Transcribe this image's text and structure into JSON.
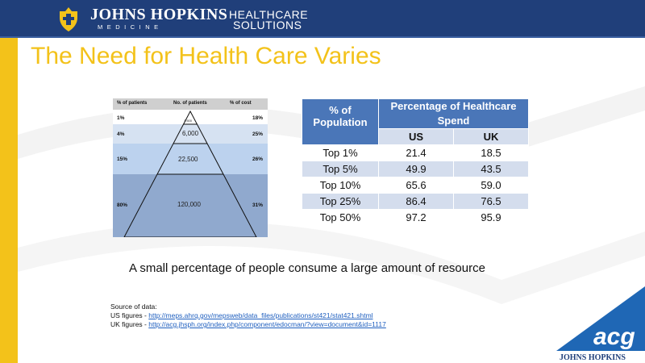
{
  "header": {
    "logo_main": "JOHNS HOPKINS",
    "logo_sub": "MEDICINE",
    "division_line1": "HEALTHCARE",
    "division_line2": "SOLUTIONS"
  },
  "slide": {
    "title": "The Need for Health Care Varies",
    "caption": "A small percentage of people consume a large amount of resource"
  },
  "pyramid": {
    "headers": [
      "% of patients",
      "No. of patients",
      "% of cost"
    ],
    "rows": [
      {
        "patients_pct": "1%",
        "count": "1,500",
        "cost_pct": "18%"
      },
      {
        "patients_pct": "4%",
        "count": "6,000",
        "cost_pct": "25%"
      },
      {
        "patients_pct": "15%",
        "count": "22,500",
        "cost_pct": "26%"
      },
      {
        "patients_pct": "80%",
        "count": "120,000",
        "cost_pct": "31%"
      }
    ]
  },
  "spend_table": {
    "header_population": "% of Population",
    "header_spend": "Percentage of Healthcare Spend",
    "col_us": "US",
    "col_uk": "UK",
    "rows": [
      {
        "label": "Top 1%",
        "us": "21.4",
        "uk": "18.5"
      },
      {
        "label": "Top 5%",
        "us": "49.9",
        "uk": "43.5"
      },
      {
        "label": "Top 10%",
        "us": "65.6",
        "uk": "59.0"
      },
      {
        "label": "Top 25%",
        "us": "86.4",
        "uk": "76.5"
      },
      {
        "label": "Top 50%",
        "us": "97.2",
        "uk": "95.9"
      }
    ]
  },
  "source": {
    "heading": "Source of data:",
    "us_prefix": "US figures - ",
    "us_link": "http://meps.ahrq.gov/mepsweb/data_files/publications/st421/stat421.shtml",
    "uk_prefix": "UK figures - ",
    "uk_link": "http://acg.jhsph.org/index.php/component/edocman/?view=document&id=1117"
  },
  "footer_logo": {
    "mark": "acg",
    "text": "JOHNS HOPKINS"
  },
  "colors": {
    "header_blue": "#203f7a",
    "gold": "#f3c21a",
    "table_blue": "#4a76b8",
    "table_light": "#d4dded"
  }
}
